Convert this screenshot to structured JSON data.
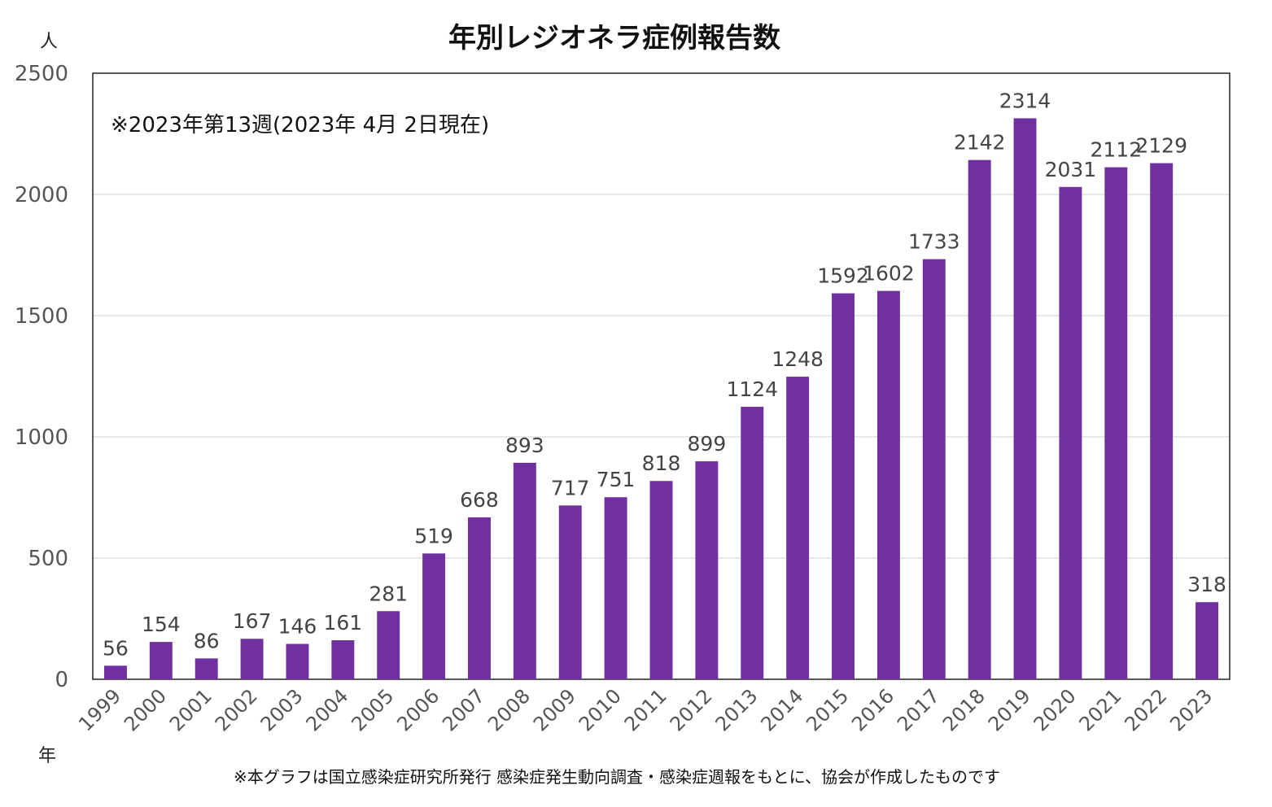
{
  "chart_data": {
    "type": "bar",
    "title": "年別レジオネラ症例報告数",
    "y_unit": "人",
    "x_unit": "年",
    "annotation": "※2023年第13週(2023年 4月 2日現在)",
    "source_note": "※本グラフは国立感染症研究所発行 感染症発生動向調査・感染症週報をもとに、協会が作成したものです",
    "ylim": [
      0,
      2500
    ],
    "yticks": [
      0,
      500,
      1000,
      1500,
      2000,
      2500
    ],
    "grid": true,
    "legend": "none",
    "categories": [
      "1999",
      "2000",
      "2001",
      "2002",
      "2003",
      "2004",
      "2005",
      "2006",
      "2007",
      "2008",
      "2009",
      "2010",
      "2011",
      "2012",
      "2013",
      "2014",
      "2015",
      "2016",
      "2017",
      "2018",
      "2019",
      "2020",
      "2021",
      "2022",
      "2023"
    ],
    "values": [
      56,
      154,
      86,
      167,
      146,
      161,
      281,
      519,
      668,
      893,
      717,
      751,
      818,
      899,
      1124,
      1248,
      1592,
      1602,
      1733,
      2142,
      2314,
      2031,
      2112,
      2129,
      318
    ],
    "bar_color": "#7030a0"
  }
}
